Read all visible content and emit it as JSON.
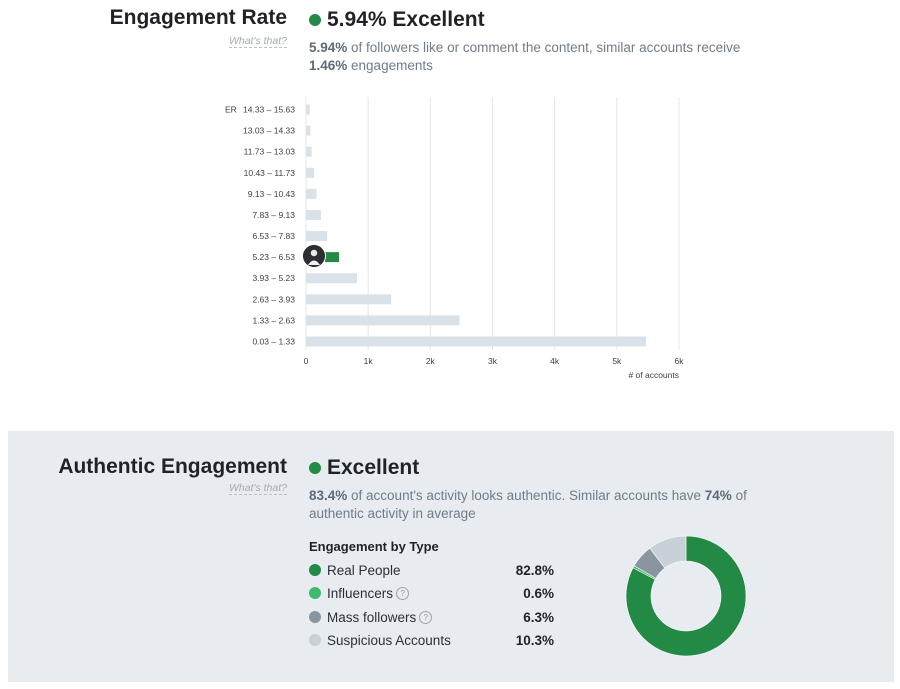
{
  "engagement": {
    "title": "Engagement Rate",
    "whats_that": "What's that?",
    "status_value": "5.94% Excellent",
    "status_color": "#228a45",
    "desc_bold1": "5.94%",
    "desc_mid": " of followers like or comment the content, similar accounts receive",
    "desc_bold2": "1.46%",
    "desc_end": " engagements"
  },
  "chart_data": {
    "type": "bar",
    "orientation": "horizontal",
    "categories": [
      "14.33 – 15.63",
      "13.03 – 14.33",
      "11.73 – 13.03",
      "10.43 – 11.73",
      "9.13 – 10.43",
      "7.83 – 9.13",
      "6.53 – 7.83",
      "5.23 – 6.53",
      "3.93 – 5.23",
      "2.63 – 3.93",
      "1.33 – 2.63",
      "0.03 – 1.33"
    ],
    "values": [
      60,
      70,
      90,
      130,
      170,
      240,
      340,
      500,
      820,
      1370,
      2470,
      5470
    ],
    "highlight_category": "5.23 – 6.53",
    "y_axis_label": "ER",
    "xlabel": "# of accounts",
    "xticks": [
      "0",
      "1k",
      "2k",
      "3k",
      "4k",
      "5k",
      "6k"
    ],
    "xlim": [
      0,
      6000
    ],
    "grid": true,
    "colors": {
      "bar": "#d9e2e8",
      "highlight": "#228a45",
      "grid": "#e3e7eb"
    }
  },
  "authentic": {
    "title": "Authentic Engagement",
    "whats_that": "What's that?",
    "status_value": "Excellent",
    "status_color": "#228a45",
    "desc_bold1": "83.4%",
    "desc_mid": " of account's activity looks authentic. Similar accounts have ",
    "desc_bold2": "74%",
    "desc_mid2": " of",
    "desc_line2": "authentic activity in average",
    "by_type_title": "Engagement by Type",
    "types": [
      {
        "label": "Real People",
        "value": "82.8%",
        "color": "#228a45",
        "help": false
      },
      {
        "label": "Influencers",
        "value": "0.6%",
        "color": "#3fb96c",
        "help": true
      },
      {
        "label": "Mass followers",
        "value": "6.3%",
        "color": "#8a959f",
        "help": true
      },
      {
        "label": "Suspicious Accounts",
        "value": "10.3%",
        "color": "#c8d1d8",
        "help": false
      }
    ],
    "help_glyph": "?",
    "donut_values": [
      82.8,
      0.6,
      6.3,
      10.3
    ]
  }
}
